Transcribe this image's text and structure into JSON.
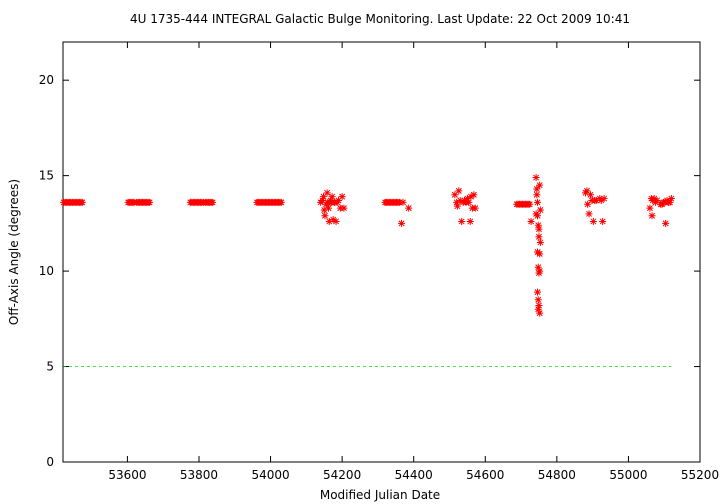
{
  "chart_data": {
    "type": "scatter",
    "title": "4U 1735-444   INTEGRAL Galactic Bulge Monitoring.  Last Update: 22 Oct 2009 10:41",
    "xlabel": "Modified Julian Date",
    "ylabel": "Off-Axis Angle (degrees)",
    "xlim": [
      53420,
      55200
    ],
    "ylim": [
      0,
      22
    ],
    "xticks": [
      53600,
      53800,
      54000,
      54200,
      54400,
      54600,
      54800,
      55000,
      55200
    ],
    "yticks": [
      0,
      5,
      10,
      15,
      20
    ],
    "grid": false,
    "colors": {
      "points": "#ff0000",
      "reference_line": "#00cc00",
      "axes": "#000000"
    },
    "reference_line": {
      "y": 5.0,
      "x_range": [
        53420,
        55120
      ],
      "style": "dashed"
    },
    "series": [
      {
        "marker": "asterisk",
        "points": [
          [
            53422,
            13.6
          ],
          [
            53426,
            13.6
          ],
          [
            53430,
            13.6
          ],
          [
            53434,
            13.6
          ],
          [
            53438,
            13.6
          ],
          [
            53442,
            13.6
          ],
          [
            53446,
            13.6
          ],
          [
            53450,
            13.6
          ],
          [
            53454,
            13.6
          ],
          [
            53458,
            13.6
          ],
          [
            53462,
            13.6
          ],
          [
            53466,
            13.6
          ],
          [
            53470,
            13.6
          ],
          [
            53474,
            13.6
          ],
          [
            53602,
            13.6
          ],
          [
            53606,
            13.6
          ],
          [
            53610,
            13.6
          ],
          [
            53614,
            13.6
          ],
          [
            53618,
            13.6
          ],
          [
            53626,
            13.6
          ],
          [
            53630,
            13.6
          ],
          [
            53634,
            13.6
          ],
          [
            53638,
            13.6
          ],
          [
            53642,
            13.6
          ],
          [
            53646,
            13.6
          ],
          [
            53650,
            13.6
          ],
          [
            53654,
            13.6
          ],
          [
            53658,
            13.6
          ],
          [
            53662,
            13.6
          ],
          [
            53776,
            13.6
          ],
          [
            53780,
            13.6
          ],
          [
            53784,
            13.6
          ],
          [
            53788,
            13.6
          ],
          [
            53792,
            13.6
          ],
          [
            53796,
            13.6
          ],
          [
            53800,
            13.6
          ],
          [
            53804,
            13.6
          ],
          [
            53808,
            13.6
          ],
          [
            53812,
            13.6
          ],
          [
            53818,
            13.6
          ],
          [
            53822,
            13.6
          ],
          [
            53826,
            13.6
          ],
          [
            53830,
            13.6
          ],
          [
            53834,
            13.6
          ],
          [
            53838,
            13.6
          ],
          [
            53962,
            13.6
          ],
          [
            53966,
            13.6
          ],
          [
            53970,
            13.6
          ],
          [
            53974,
            13.6
          ],
          [
            53978,
            13.6
          ],
          [
            53982,
            13.6
          ],
          [
            53986,
            13.6
          ],
          [
            53990,
            13.6
          ],
          [
            53994,
            13.6
          ],
          [
            53998,
            13.6
          ],
          [
            54002,
            13.6
          ],
          [
            54006,
            13.6
          ],
          [
            54010,
            13.6
          ],
          [
            54014,
            13.6
          ],
          [
            54018,
            13.6
          ],
          [
            54022,
            13.6
          ],
          [
            54026,
            13.6
          ],
          [
            54030,
            13.6
          ],
          [
            54140,
            13.6
          ],
          [
            54145,
            13.7
          ],
          [
            54148,
            13.9
          ],
          [
            54150,
            13.2
          ],
          [
            54152,
            12.9
          ],
          [
            54155,
            13.5
          ],
          [
            54158,
            14.1
          ],
          [
            54160,
            13.6
          ],
          [
            54162,
            13.3
          ],
          [
            54164,
            12.6
          ],
          [
            54166,
            13.6
          ],
          [
            54168,
            13.7
          ],
          [
            54170,
            13.6
          ],
          [
            54172,
            13.9
          ],
          [
            54175,
            12.7
          ],
          [
            54178,
            13.6
          ],
          [
            54180,
            13.6
          ],
          [
            54183,
            12.6
          ],
          [
            54186,
            13.6
          ],
          [
            54190,
            13.7
          ],
          [
            54195,
            13.3
          ],
          [
            54200,
            13.9
          ],
          [
            54205,
            13.3
          ],
          [
            54320,
            13.6
          ],
          [
            54324,
            13.6
          ],
          [
            54328,
            13.6
          ],
          [
            54332,
            13.6
          ],
          [
            54336,
            13.6
          ],
          [
            54340,
            13.6
          ],
          [
            54344,
            13.6
          ],
          [
            54348,
            13.6
          ],
          [
            54352,
            13.6
          ],
          [
            54356,
            13.6
          ],
          [
            54360,
            13.6
          ],
          [
            54366,
            12.5
          ],
          [
            54370,
            13.6
          ],
          [
            54386,
            13.3
          ],
          [
            54515,
            14.0
          ],
          [
            54520,
            13.6
          ],
          [
            54522,
            13.4
          ],
          [
            54526,
            14.2
          ],
          [
            54530,
            13.7
          ],
          [
            54534,
            12.6
          ],
          [
            54538,
            13.6
          ],
          [
            54542,
            13.7
          ],
          [
            54546,
            13.6
          ],
          [
            54550,
            13.8
          ],
          [
            54554,
            13.6
          ],
          [
            54558,
            12.6
          ],
          [
            54560,
            13.9
          ],
          [
            54564,
            13.3
          ],
          [
            54568,
            14.0
          ],
          [
            54572,
            13.3
          ],
          [
            54688,
            13.5
          ],
          [
            54692,
            13.5
          ],
          [
            54696,
            13.5
          ],
          [
            54700,
            13.5
          ],
          [
            54704,
            13.5
          ],
          [
            54708,
            13.5
          ],
          [
            54712,
            13.5
          ],
          [
            54716,
            13.5
          ],
          [
            54720,
            13.5
          ],
          [
            54724,
            13.5
          ],
          [
            54728,
            12.6
          ],
          [
            54742,
            14.9
          ],
          [
            54744,
            14.3
          ],
          [
            54746,
            13.6
          ],
          [
            54748,
            12.4
          ],
          [
            54750,
            11.8
          ],
          [
            54752,
            10.9
          ],
          [
            54748,
            10.2
          ],
          [
            54752,
            10.0
          ],
          [
            54746,
            8.9
          ],
          [
            54750,
            8.2
          ],
          [
            54748,
            8.0
          ],
          [
            54752,
            7.8
          ],
          [
            54744,
            14.0
          ],
          [
            54746,
            12.9
          ],
          [
            54750,
            12.2
          ],
          [
            54754,
            11.5
          ],
          [
            54742,
            13.0
          ],
          [
            54752,
            14.5
          ],
          [
            54746,
            11.0
          ],
          [
            54750,
            9.9
          ],
          [
            54748,
            8.5
          ],
          [
            54754,
            13.2
          ],
          [
            54880,
            14.1
          ],
          [
            54884,
            14.2
          ],
          [
            54886,
            13.5
          ],
          [
            54890,
            13.0
          ],
          [
            54894,
            14.0
          ],
          [
            54898,
            13.7
          ],
          [
            54902,
            12.6
          ],
          [
            54906,
            13.7
          ],
          [
            54910,
            13.7
          ],
          [
            54920,
            13.8
          ],
          [
            54924,
            13.7
          ],
          [
            54928,
            12.6
          ],
          [
            54932,
            13.8
          ],
          [
            55060,
            13.3
          ],
          [
            55064,
            13.8
          ],
          [
            55066,
            12.9
          ],
          [
            55068,
            13.7
          ],
          [
            55072,
            13.8
          ],
          [
            55076,
            13.6
          ],
          [
            55080,
            13.7
          ],
          [
            55090,
            13.5
          ],
          [
            55094,
            13.5
          ],
          [
            55098,
            13.6
          ],
          [
            55102,
            13.6
          ],
          [
            55104,
            12.5
          ],
          [
            55108,
            13.7
          ],
          [
            55112,
            13.6
          ],
          [
            55116,
            13.6
          ],
          [
            55120,
            13.8
          ]
        ]
      }
    ]
  }
}
